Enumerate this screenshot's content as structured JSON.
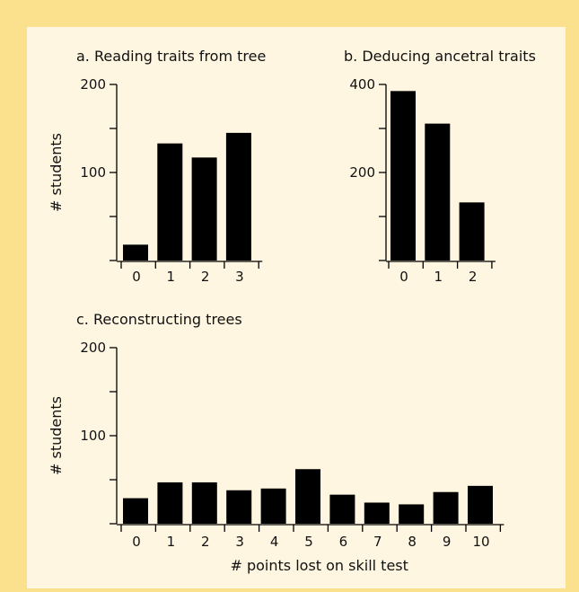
{
  "chart_data": [
    {
      "type": "bar",
      "title": "a. Reading traits from tree",
      "ylabel": "# students",
      "xlabel": "",
      "categories": [
        "0",
        "1",
        "2",
        "3"
      ],
      "values": [
        18,
        133,
        117,
        145
      ],
      "ylim": [
        0,
        200
      ],
      "yticks": [
        0,
        100,
        200
      ],
      "ytick_labels": [
        "",
        "100",
        "200"
      ]
    },
    {
      "type": "bar",
      "title": "b. Deducing ancetral traits",
      "ylabel": "",
      "xlabel": "",
      "categories": [
        "0",
        "1",
        "2"
      ],
      "values": [
        385,
        311,
        132
      ],
      "ylim": [
        0,
        400
      ],
      "yticks": [
        0,
        200,
        400
      ],
      "ytick_labels": [
        "",
        "200",
        "400"
      ]
    },
    {
      "type": "bar",
      "title": "c. Reconstructing trees",
      "ylabel": "# students",
      "xlabel": "# points lost on skill test",
      "categories": [
        "0",
        "1",
        "2",
        "3",
        "4",
        "5",
        "6",
        "7",
        "8",
        "9",
        "10"
      ],
      "values": [
        29,
        47,
        47,
        38,
        40,
        62,
        33,
        24,
        22,
        36,
        43
      ],
      "ylim": [
        0,
        200
      ],
      "yticks": [
        0,
        100,
        200
      ],
      "ytick_labels": [
        "",
        "100",
        "200"
      ]
    }
  ],
  "colors": {
    "background": "#fbe08e",
    "panel": "#fef6e0",
    "bar": "#000000"
  }
}
